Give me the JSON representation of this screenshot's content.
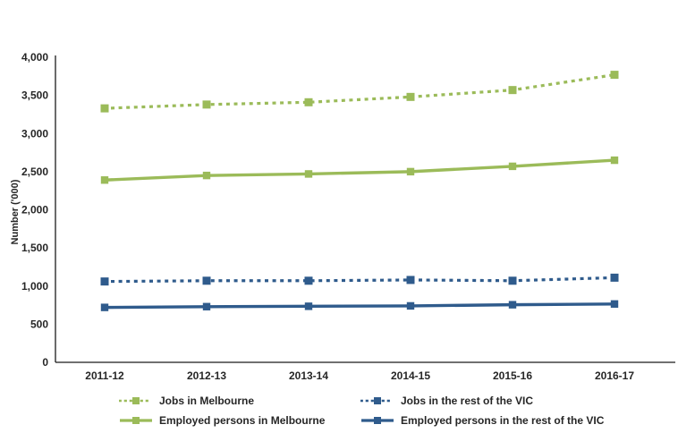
{
  "chart_data": {
    "type": "line",
    "title": "",
    "xlabel": "",
    "ylabel": "Number ('000)",
    "categories": [
      "2011-12",
      "2012-13",
      "2013-14",
      "2014-15",
      "2015-16",
      "2016-17"
    ],
    "ylim": [
      0,
      4000
    ],
    "ytick_interval": 500,
    "ytick_labels": [
      "0",
      "500",
      "1,000",
      "1,500",
      "2,000",
      "2,500",
      "3,000",
      "3,500",
      "4,000"
    ],
    "grid": false,
    "legend_position": "bottom",
    "legend_columns": 2,
    "series": [
      {
        "name": "Jobs in Melbourne",
        "color": "#9BBB59",
        "style": "dotted",
        "values": [
          3330,
          3380,
          3410,
          3480,
          3570,
          3770
        ]
      },
      {
        "name": "Jobs in the rest of the VIC",
        "color": "#2F5B8C",
        "style": "dotted",
        "values": [
          1060,
          1070,
          1070,
          1080,
          1070,
          1110
        ]
      },
      {
        "name": "Employed persons in Melbourne",
        "color": "#9BBB59",
        "style": "solid",
        "values": [
          2390,
          2450,
          2470,
          2500,
          2570,
          2650
        ]
      },
      {
        "name": "Employed persons in the rest of the VIC",
        "color": "#2F5B8C",
        "style": "solid",
        "values": [
          720,
          730,
          735,
          740,
          755,
          765
        ]
      }
    ]
  },
  "colors": {
    "green_series": "#9BBB59",
    "blue_series": "#2F5B8C",
    "axis_line": "#1a1a1a",
    "label_text": "#262626",
    "background": "#ffffff"
  }
}
